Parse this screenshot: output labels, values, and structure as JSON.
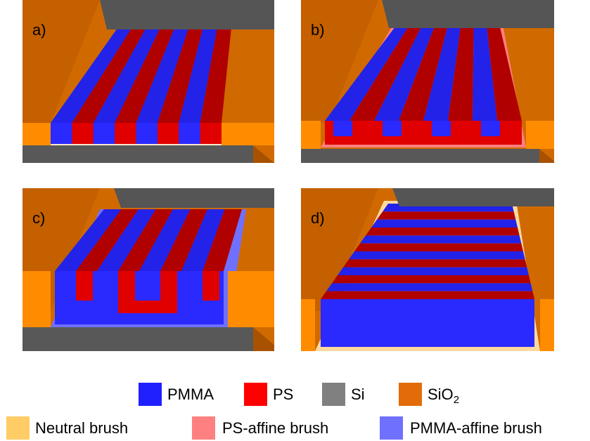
{
  "panels": [
    {
      "label": "a)"
    },
    {
      "label": "b)"
    },
    {
      "label": "c)"
    },
    {
      "label": "d)"
    }
  ],
  "legend": {
    "row1": [
      {
        "label": "PMMA"
      },
      {
        "label": "PS"
      },
      {
        "label": "Si"
      },
      {
        "label": "SiO",
        "subscript": "2"
      }
    ],
    "row2": [
      {
        "label": "Neutral brush"
      },
      {
        "label": "PS-affine brush"
      },
      {
        "label": "PMMA-affine brush"
      }
    ]
  }
}
